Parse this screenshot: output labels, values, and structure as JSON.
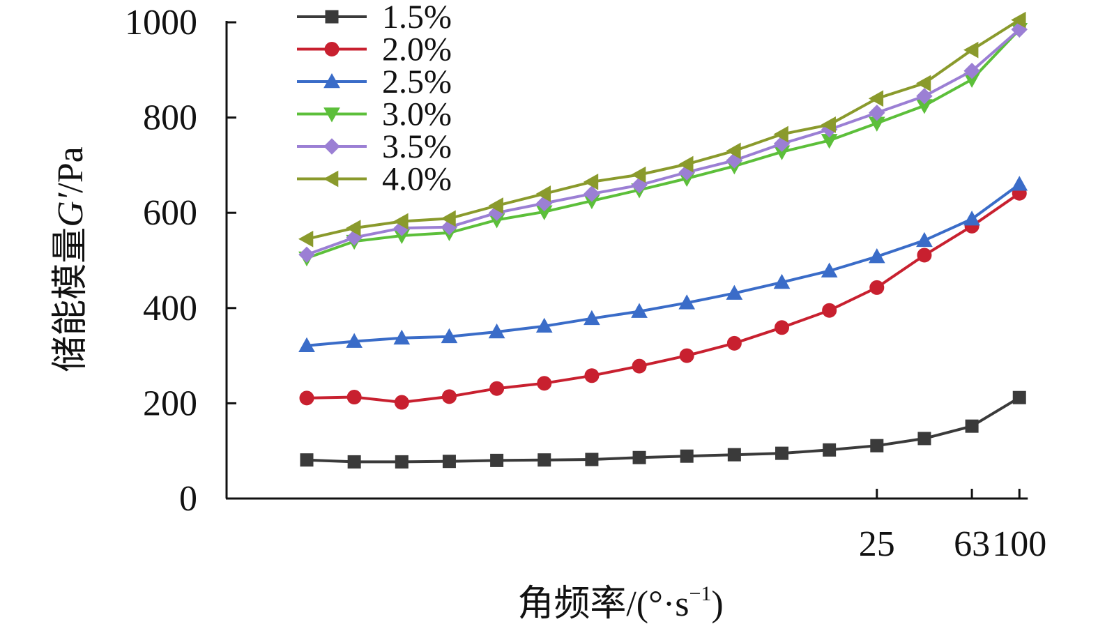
{
  "chart_data": {
    "type": "line",
    "ylabel_prefix": "储能模量",
    "ylabel_symbol": "G′",
    "ylabel_unit": "/Pa",
    "xlabel_text": "角频率/(°·s",
    "xlabel_sup": "−1",
    "xlabel_close": ")",
    "ylim": [
      0,
      1000
    ],
    "y_ticks": [
      0,
      200,
      400,
      600,
      800,
      1000
    ],
    "x_ticks": [
      {
        "label": "25",
        "at": 13
      },
      {
        "label": "63",
        "at": 15
      },
      {
        "label": "100",
        "at": 16
      }
    ],
    "x_count": 16,
    "legend_position": "top-left",
    "grid": false,
    "series": [
      {
        "name": "1.5%",
        "color": "#3a3a3a",
        "marker": "square",
        "values": [
          81,
          77,
          77,
          78,
          80,
          81,
          82,
          86,
          89,
          92,
          95,
          102,
          111,
          126,
          152,
          212
        ]
      },
      {
        "name": "2.0%",
        "color": "#c8202f",
        "marker": "circle",
        "values": [
          211,
          213,
          202,
          214,
          231,
          242,
          258,
          278,
          300,
          326,
          359,
          395,
          443,
          511,
          572,
          641
        ]
      },
      {
        "name": "2.5%",
        "color": "#3a6cc8",
        "marker": "triangle-up",
        "values": [
          321,
          330,
          337,
          340,
          350,
          362,
          378,
          393,
          411,
          431,
          454,
          478,
          508,
          542,
          587,
          660
        ]
      },
      {
        "name": "3.0%",
        "color": "#5cbf3a",
        "marker": "triangle-down",
        "values": [
          505,
          540,
          552,
          558,
          585,
          602,
          625,
          648,
          672,
          698,
          728,
          752,
          788,
          825,
          880,
          985
        ]
      },
      {
        "name": "3.5%",
        "color": "#9b7fd4",
        "marker": "diamond",
        "values": [
          512,
          548,
          568,
          570,
          600,
          620,
          640,
          658,
          685,
          710,
          745,
          775,
          810,
          845,
          898,
          985
        ]
      },
      {
        "name": "4.0%",
        "color": "#8a9a2c",
        "marker": "triangle-left",
        "values": [
          545,
          568,
          582,
          588,
          615,
          640,
          665,
          680,
          702,
          730,
          765,
          785,
          840,
          872,
          942,
          1005
        ]
      }
    ]
  }
}
